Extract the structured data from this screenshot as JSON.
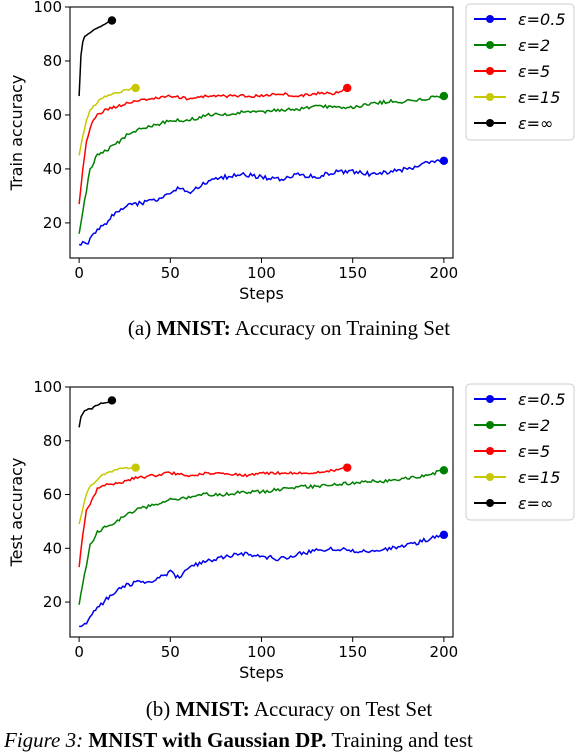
{
  "colors": {
    "eps_0_5": "#0000ee",
    "eps_2": "#008000",
    "eps_5": "#ff0000",
    "eps_15": "#c8c800",
    "eps_inf": "#000000"
  },
  "captions": {
    "a_prefix": "(a)",
    "a_bold": "MNIST:",
    "a_rest": "Accuracy on Training Set",
    "b_prefix": "(b)",
    "b_bold": "MNIST:",
    "b_rest": "Accuracy on Test Set",
    "figure_prefix": "Figure 3:",
    "figure_bold": "MNIST with Gaussian DP.",
    "figure_rest": "Training and test"
  },
  "chart_data": [
    {
      "type": "line",
      "panel": "a",
      "xlabel": "Steps",
      "ylabel": "Train accuracy",
      "xlim": [
        -5,
        205
      ],
      "ylim": [
        7,
        100
      ],
      "xticks": [
        0,
        50,
        100,
        150,
        200
      ],
      "yticks": [
        20,
        40,
        60,
        80,
        100
      ],
      "grid": false,
      "legend": "outside-right",
      "series": [
        {
          "name": "ε=0.5",
          "color_key": "eps_0_5",
          "x": [
            0,
            5,
            10,
            15,
            20,
            25,
            30,
            40,
            50,
            55,
            60,
            70,
            80,
            90,
            100,
            110,
            120,
            130,
            140,
            150,
            160,
            170,
            180,
            190,
            200
          ],
          "y": [
            12,
            13,
            17,
            20,
            24,
            26,
            27,
            28,
            31,
            33,
            31,
            35,
            37,
            38,
            37,
            36,
            38,
            37,
            39,
            39,
            38,
            39,
            40,
            42,
            43
          ]
        },
        {
          "name": "ε=2",
          "color_key": "eps_2",
          "x": [
            0,
            3,
            6,
            10,
            15,
            20,
            25,
            30,
            40,
            50,
            60,
            70,
            80,
            90,
            100,
            110,
            120,
            130,
            140,
            150,
            160,
            170,
            180,
            190,
            200
          ],
          "y": [
            16,
            28,
            40,
            45,
            47,
            49,
            52,
            54,
            56,
            58,
            58,
            60,
            60,
            61,
            61,
            62,
            62,
            63,
            63,
            63,
            64,
            65,
            65,
            66,
            67
          ]
        },
        {
          "name": "ε=5",
          "color_key": "eps_5",
          "x": [
            0,
            2,
            4,
            7,
            10,
            15,
            20,
            25,
            30,
            40,
            50,
            60,
            70,
            80,
            90,
            100,
            110,
            120,
            130,
            140,
            147
          ],
          "y": [
            27,
            40,
            50,
            57,
            60,
            62,
            63,
            64,
            65,
            66,
            67,
            66,
            67,
            67,
            67,
            67,
            68,
            67,
            68,
            68,
            70
          ]
        },
        {
          "name": "ε=15",
          "color_key": "eps_15",
          "x": [
            0,
            2,
            4,
            6,
            9,
            12,
            15,
            20,
            25,
            30,
            31
          ],
          "y": [
            45,
            52,
            58,
            62,
            64,
            66,
            67,
            68,
            69,
            70,
            70
          ]
        },
        {
          "name": "ε=∞",
          "color_key": "eps_inf",
          "x": [
            0,
            1,
            2,
            3,
            5,
            7,
            9,
            12,
            15,
            18
          ],
          "y": [
            67,
            82,
            87,
            89,
            90,
            91,
            92,
            93,
            94,
            95
          ]
        }
      ]
    },
    {
      "type": "line",
      "panel": "b",
      "xlabel": "Steps",
      "ylabel": "Test accuracy",
      "xlim": [
        -5,
        205
      ],
      "ylim": [
        7,
        100
      ],
      "xticks": [
        0,
        50,
        100,
        150,
        200
      ],
      "yticks": [
        20,
        40,
        60,
        80,
        100
      ],
      "grid": false,
      "legend": "outside-right",
      "series": [
        {
          "name": "ε=0.5",
          "color_key": "eps_0_5",
          "x": [
            0,
            5,
            10,
            15,
            20,
            25,
            30,
            40,
            50,
            55,
            60,
            70,
            80,
            90,
            100,
            110,
            120,
            130,
            140,
            150,
            160,
            170,
            180,
            190,
            200
          ],
          "y": [
            11,
            13,
            18,
            21,
            24,
            26,
            27,
            28,
            31,
            29,
            33,
            35,
            37,
            38,
            37,
            36,
            38,
            39,
            40,
            39,
            39,
            40,
            41,
            43,
            45
          ]
        },
        {
          "name": "ε=2",
          "color_key": "eps_2",
          "x": [
            0,
            3,
            6,
            10,
            15,
            20,
            25,
            30,
            40,
            50,
            60,
            70,
            80,
            90,
            100,
            110,
            120,
            130,
            140,
            150,
            160,
            170,
            180,
            190,
            200
          ],
          "y": [
            19,
            30,
            41,
            46,
            48,
            50,
            52,
            54,
            56,
            58,
            59,
            60,
            60,
            61,
            61,
            62,
            63,
            63,
            64,
            64,
            65,
            65,
            66,
            67,
            69
          ]
        },
        {
          "name": "ε=5",
          "color_key": "eps_5",
          "x": [
            0,
            2,
            4,
            7,
            10,
            15,
            20,
            25,
            30,
            40,
            50,
            60,
            70,
            80,
            90,
            100,
            110,
            120,
            130,
            140,
            147
          ],
          "y": [
            33,
            45,
            54,
            58,
            62,
            64,
            64,
            65,
            66,
            67,
            68,
            67,
            68,
            68,
            67,
            68,
            68,
            68,
            68,
            69,
            70
          ]
        },
        {
          "name": "ε=15",
          "color_key": "eps_15",
          "x": [
            0,
            2,
            4,
            6,
            9,
            12,
            15,
            20,
            25,
            30,
            31
          ],
          "y": [
            49,
            55,
            60,
            63,
            65,
            67,
            68,
            69,
            70,
            70,
            70
          ]
        },
        {
          "name": "ε=∞",
          "color_key": "eps_inf",
          "x": [
            0,
            1,
            2,
            3,
            5,
            7,
            9,
            12,
            15,
            18
          ],
          "y": [
            85,
            89,
            90,
            91,
            92,
            92,
            93,
            94,
            94,
            95
          ]
        }
      ]
    }
  ]
}
